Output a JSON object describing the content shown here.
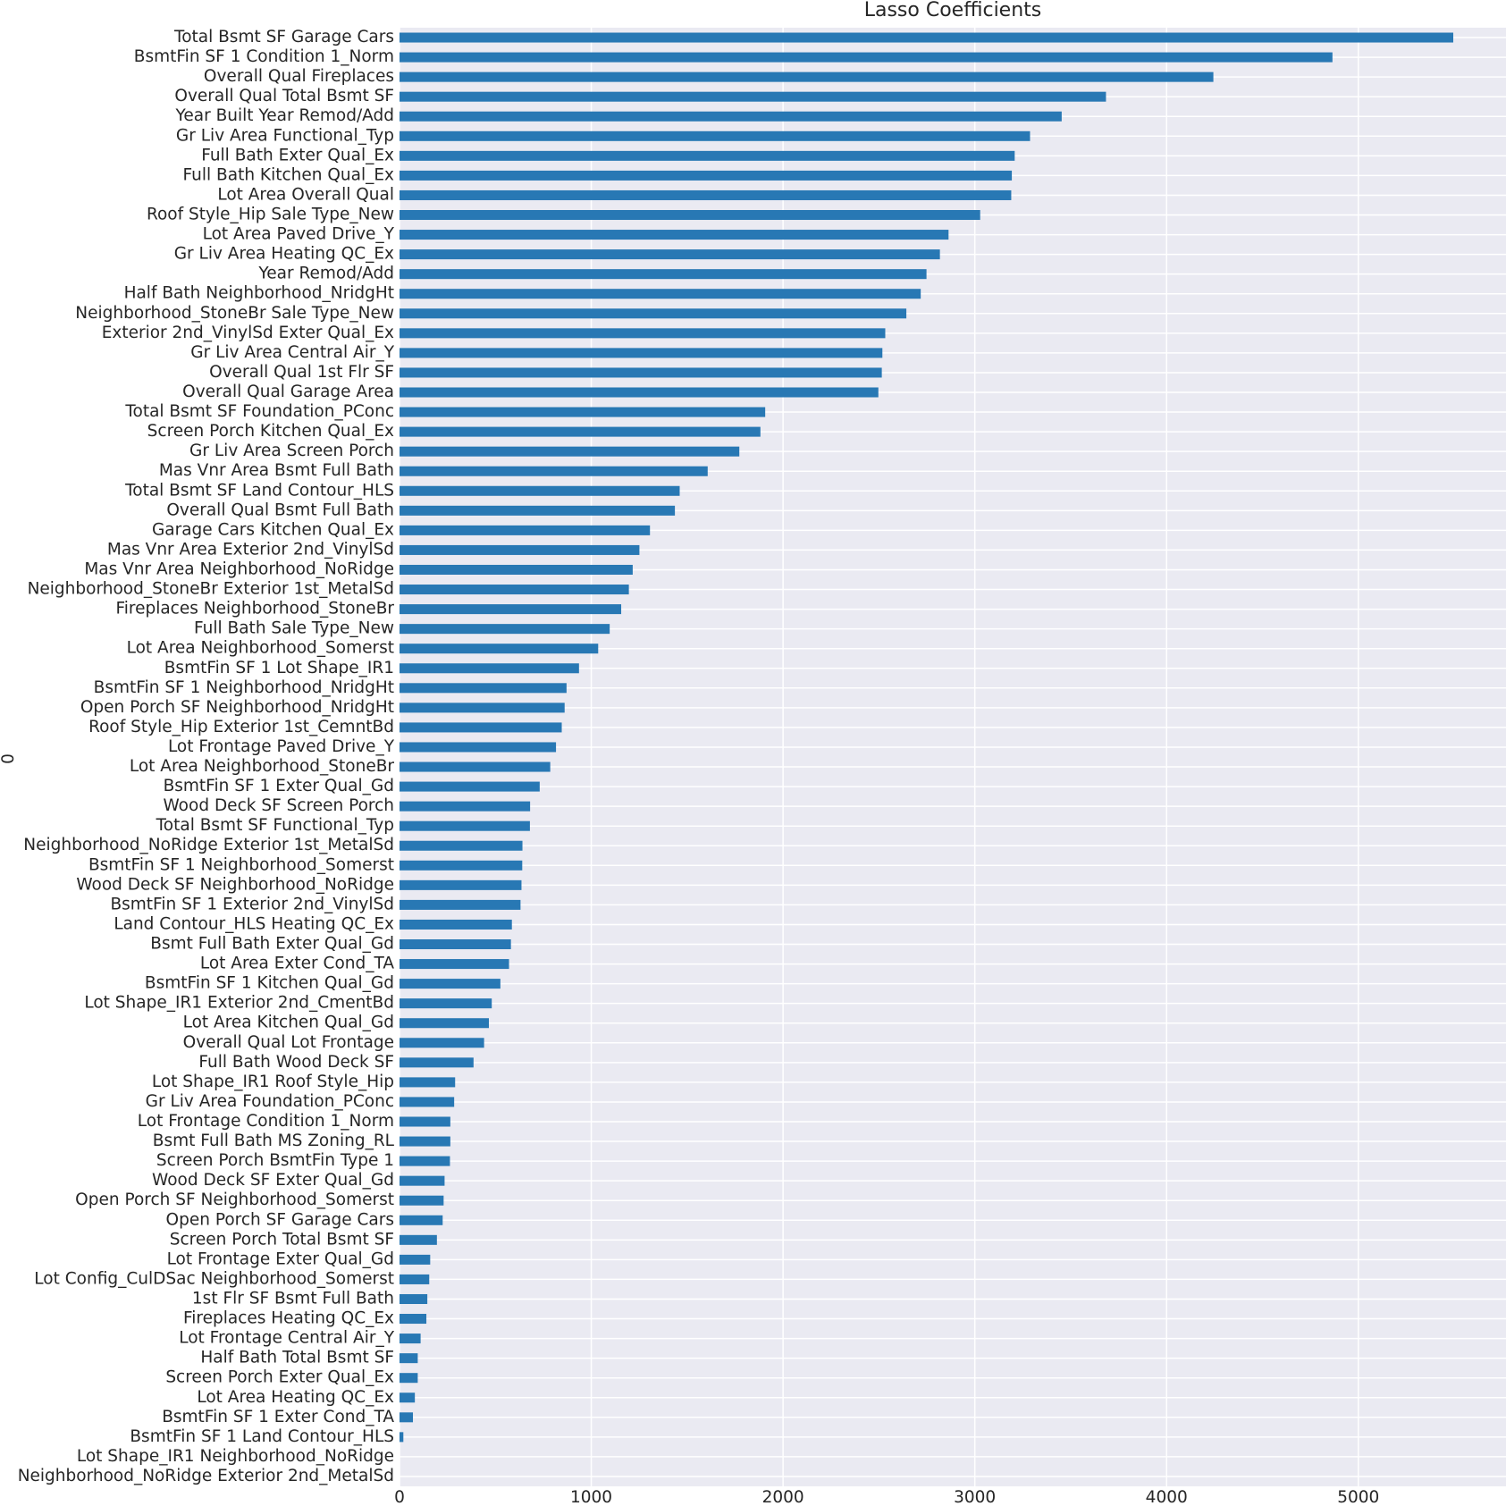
{
  "chart_data": {
    "type": "barh",
    "title": "Lasso Coefficients",
    "y_label": "0",
    "categories": [
      "Total Bsmt SF Garage Cars",
      "BsmtFin SF 1 Condition 1_Norm",
      "Overall Qual Fireplaces",
      "Overall Qual Total Bsmt SF",
      "Year Built Year Remod/Add",
      "Gr Liv Area Functional_Typ",
      "Full Bath Exter Qual_Ex",
      "Full Bath Kitchen Qual_Ex",
      "Lot Area Overall Qual",
      "Roof Style_Hip Sale Type_New",
      "Lot Area Paved Drive_Y",
      "Gr Liv Area Heating QC_Ex",
      "Year Remod/Add",
      "Half Bath Neighborhood_NridgHt",
      "Neighborhood_StoneBr Sale Type_New",
      "Exterior 2nd_VinylSd Exter Qual_Ex",
      "Gr Liv Area Central Air_Y",
      "Overall Qual 1st Flr SF",
      "Overall Qual Garage Area",
      "Total Bsmt SF Foundation_PConc",
      "Screen Porch Kitchen Qual_Ex",
      "Gr Liv Area Screen Porch",
      "Mas Vnr Area Bsmt Full Bath",
      "Total Bsmt SF Land Contour_HLS",
      "Overall Qual Bsmt Full Bath",
      "Garage Cars Kitchen Qual_Ex",
      "Mas Vnr Area Exterior 2nd_VinylSd",
      "Mas Vnr Area Neighborhood_NoRidge",
      "Neighborhood_StoneBr Exterior 1st_MetalSd",
      "Fireplaces Neighborhood_StoneBr",
      "Full Bath Sale Type_New",
      "Lot Area Neighborhood_Somerst",
      "BsmtFin SF 1 Lot Shape_IR1",
      "BsmtFin SF 1 Neighborhood_NridgHt",
      "Open Porch SF Neighborhood_NridgHt",
      "Roof Style_Hip Exterior 1st_CemntBd",
      "Lot Frontage Paved Drive_Y",
      "Lot Area Neighborhood_StoneBr",
      "BsmtFin SF 1 Exter Qual_Gd",
      "Wood Deck SF Screen Porch",
      "Total Bsmt SF Functional_Typ",
      "Neighborhood_NoRidge Exterior 1st_MetalSd",
      "BsmtFin SF 1 Neighborhood_Somerst",
      "Wood Deck SF Neighborhood_NoRidge",
      "BsmtFin SF 1 Exterior 2nd_VinylSd",
      "Land Contour_HLS Heating QC_Ex",
      "Bsmt Full Bath Exter Qual_Gd",
      "Lot Area Exter Cond_TA",
      "BsmtFin SF 1 Kitchen Qual_Gd",
      "Lot Shape_IR1 Exterior 2nd_CmentBd",
      "Lot Area Kitchen Qual_Gd",
      "Overall Qual Lot Frontage",
      "Full Bath Wood Deck SF",
      "Lot Shape_IR1 Roof Style_Hip",
      "Gr Liv Area Foundation_PConc",
      "Lot Frontage Condition 1_Norm",
      "Bsmt Full Bath MS Zoning_RL",
      "Screen Porch BsmtFin Type 1",
      "Wood Deck SF Exter Qual_Gd",
      "Open Porch SF Neighborhood_Somerst",
      "Open Porch SF Garage Cars",
      "Screen Porch Total Bsmt SF",
      "Lot Frontage Exter Qual_Gd",
      "Lot Config_CulDSac Neighborhood_Somerst",
      "1st Flr SF Bsmt Full Bath",
      "Fireplaces Heating QC_Ex",
      "Lot Frontage Central Air_Y",
      "Half Bath Total Bsmt SF",
      "Screen Porch Exter Qual_Ex",
      "Lot Area Heating QC_Ex",
      "BsmtFin SF 1 Exter Cond_TA",
      "BsmtFin SF 1 Land Contour_HLS",
      "Lot Shape_IR1 Neighborhood_NoRidge",
      "Neighborhood_NoRidge Exterior 2nd_MetalSd"
    ],
    "values": [
      5495,
      4865,
      4244,
      3684,
      3453,
      3288,
      3208,
      3193,
      3190,
      3028,
      2863,
      2818,
      2748,
      2718,
      2643,
      2533,
      2518,
      2515,
      2497,
      1907,
      1882,
      1772,
      1607,
      1461,
      1436,
      1306,
      1251,
      1216,
      1196,
      1156,
      1096,
      1036,
      936,
      871,
      861,
      846,
      816,
      786,
      731,
      681,
      680,
      641,
      640,
      636,
      631,
      586,
      581,
      571,
      526,
      481,
      466,
      441,
      386,
      290,
      285,
      265,
      265,
      263,
      235,
      230,
      225,
      195,
      160,
      155,
      145,
      140,
      110,
      95,
      95,
      80,
      70,
      20,
      0,
      0
    ],
    "color": "#2878b4",
    "xlim": [
      0,
      5770
    ],
    "xticks": [
      0,
      1000,
      2000,
      3000,
      4000,
      5000
    ],
    "grid": true
  }
}
